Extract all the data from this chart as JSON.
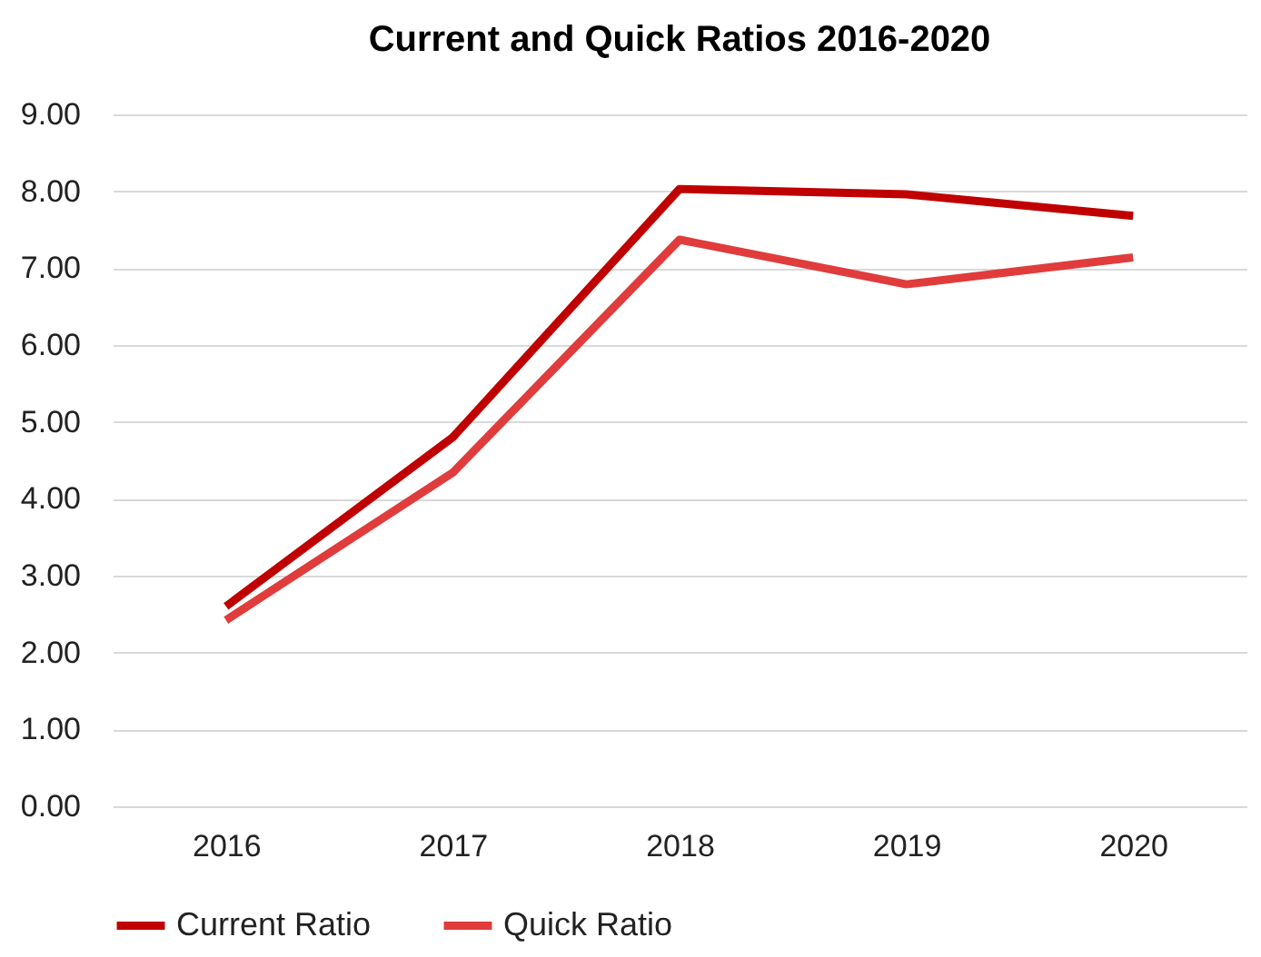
{
  "chart_data": {
    "type": "line",
    "title": "Current and Quick Ratios 2016-2020",
    "categories": [
      "2016",
      "2017",
      "2018",
      "2019",
      "2020"
    ],
    "series": [
      {
        "name": "Current Ratio",
        "color": "#c00000",
        "values": [
          2.6,
          4.8,
          8.03,
          7.96,
          7.68
        ]
      },
      {
        "name": "Quick Ratio",
        "color": "#e03c3c",
        "values": [
          2.42,
          4.34,
          7.37,
          6.79,
          7.14
        ]
      }
    ],
    "ylim": [
      0,
      9
    ],
    "yticks": [
      {
        "value": 0,
        "label": "0.00"
      },
      {
        "value": 1,
        "label": "1.00"
      },
      {
        "value": 2,
        "label": "2.00"
      },
      {
        "value": 3,
        "label": "3.00"
      },
      {
        "value": 4,
        "label": "4.00"
      },
      {
        "value": 5,
        "label": "5.00"
      },
      {
        "value": 6,
        "label": "6.00"
      },
      {
        "value": 7,
        "label": "7.00"
      },
      {
        "value": 8,
        "label": "8.00"
      },
      {
        "value": 9,
        "label": "9.00"
      }
    ],
    "grid": "y",
    "legend": "bottom",
    "marker": "none",
    "line_style": "solid"
  }
}
